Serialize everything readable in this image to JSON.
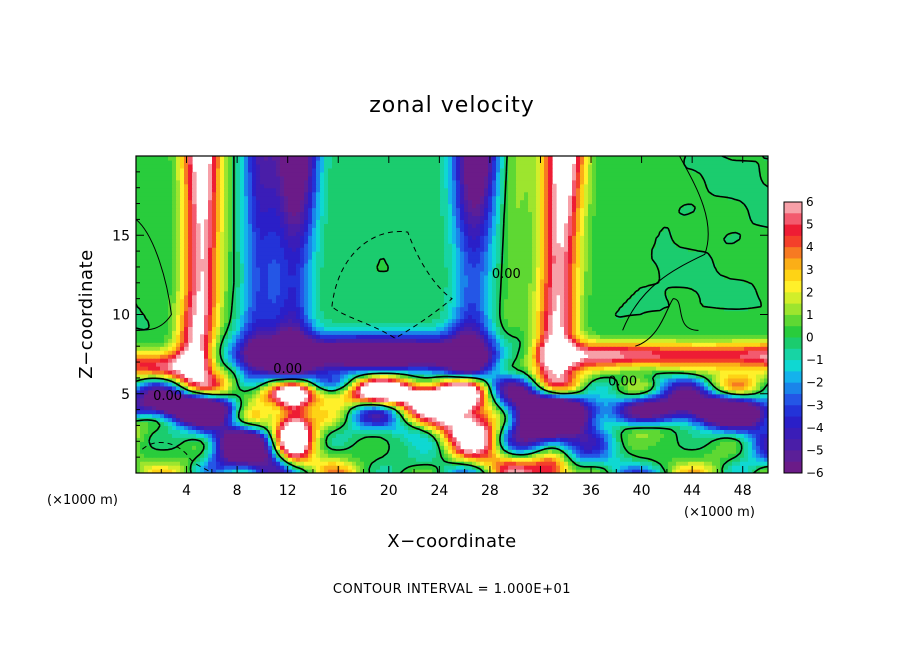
{
  "chart_data": {
    "type": "heatmap",
    "title": "zonal velocity",
    "xlabel": "X−coordinate",
    "ylabel": "Z−coordinate",
    "x_unit": "(×1000 m)",
    "y_unit": "(×1000 m)",
    "xlim": [
      0,
      50
    ],
    "ylim": [
      0,
      20
    ],
    "x_ticks": [
      4,
      8,
      12,
      16,
      20,
      24,
      28,
      32,
      36,
      40,
      44,
      48
    ],
    "y_ticks": [
      5,
      10,
      15
    ],
    "colorbar": {
      "min": -6,
      "max": 6,
      "tick_labels": [
        "6",
        "5",
        "4",
        "3",
        "2",
        "1",
        "0",
        "−1",
        "−2",
        "−3",
        "−4",
        "−5",
        "−6"
      ],
      "levels": [
        5.5,
        5,
        4.5,
        4,
        3.5,
        3,
        2.5,
        2,
        1.5,
        1,
        0.5,
        0,
        -0.5,
        -1,
        -1.5,
        -2,
        -2.5,
        -3,
        -3.5,
        -4,
        -4.5,
        -5,
        -5.5,
        -6
      ],
      "colors": [
        "#f7a0a8",
        "#f35a6e",
        "#ee1c34",
        "#f4402a",
        "#f77a22",
        "#fbae17",
        "#fed315",
        "#fff02a",
        "#d2ee2a",
        "#9de52e",
        "#5ed833",
        "#29cc3c",
        "#1bcc6e",
        "#17d4a4",
        "#0fd8d2",
        "#14b2ec",
        "#1a84ea",
        "#2456e6",
        "#2333d8",
        "#2a1fc8",
        "#3a1db8",
        "#4a1ea8",
        "#5b1f98",
        "#6b1b88"
      ]
    },
    "contour_labels": [
      {
        "x": 2.5,
        "z": 4.8,
        "text": "0.00"
      },
      {
        "x": 12.0,
        "z": 6.5,
        "text": "0.00"
      },
      {
        "x": 29.3,
        "z": 12.5,
        "text": "0.00"
      },
      {
        "x": 38.5,
        "z": 5.7,
        "text": "0.00"
      }
    ],
    "contour_interval_text": "CONTOUR INTERVAL = 1.000E+01"
  }
}
